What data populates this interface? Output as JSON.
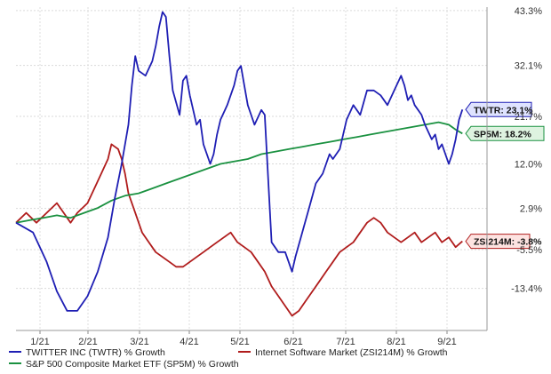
{
  "chart_data": {
    "type": "line",
    "y_ticks": [
      "43.3%",
      "32.1%",
      "21.7%",
      "12.0%",
      "2.9%",
      "-5.5%",
      "-13.4%"
    ],
    "x_ticks": [
      "1/21",
      "2/21",
      "3/21",
      "4/21",
      "5/21",
      "6/21",
      "7/21",
      "8/21",
      "9/21"
    ],
    "ylim": [
      -22,
      44
    ],
    "grid": true,
    "legend_position": "bottom",
    "series": [
      {
        "name": "TWITTER INC (TWTR) % Growth",
        "color": "#1f1fb4",
        "end_label": "TWTR: 23.1%",
        "end_fill": "#dfe3ff",
        "points": [
          [
            0,
            0
          ],
          [
            5,
            -2
          ],
          [
            9,
            -8
          ],
          [
            12,
            -14
          ],
          [
            15,
            -18
          ],
          [
            18,
            -18
          ],
          [
            21,
            -15
          ],
          [
            24,
            -10
          ],
          [
            27,
            -3
          ],
          [
            29,
            5
          ],
          [
            31,
            12
          ],
          [
            33,
            20
          ],
          [
            34,
            28
          ],
          [
            35,
            34
          ],
          [
            36,
            31
          ],
          [
            38,
            30
          ],
          [
            40,
            33
          ],
          [
            41,
            36
          ],
          [
            42,
            40
          ],
          [
            43,
            43
          ],
          [
            44,
            42
          ],
          [
            45,
            34
          ],
          [
            46,
            27
          ],
          [
            48,
            22
          ],
          [
            49,
            29
          ],
          [
            50,
            30
          ],
          [
            51,
            26
          ],
          [
            53,
            20
          ],
          [
            54,
            21
          ],
          [
            55,
            16
          ],
          [
            57,
            12
          ],
          [
            58,
            14
          ],
          [
            59,
            18
          ],
          [
            60,
            21
          ],
          [
            62,
            24
          ],
          [
            64,
            28
          ],
          [
            65,
            31
          ],
          [
            66,
            32
          ],
          [
            67,
            28
          ],
          [
            68,
            24
          ],
          [
            70,
            20
          ],
          [
            72,
            23
          ],
          [
            73,
            22
          ],
          [
            75,
            -4
          ],
          [
            77,
            -6
          ],
          [
            79,
            -6
          ],
          [
            80,
            -8
          ],
          [
            81,
            -10
          ],
          [
            82,
            -7
          ],
          [
            84,
            -2
          ],
          [
            86,
            3
          ],
          [
            88,
            8
          ],
          [
            90,
            10
          ],
          [
            92,
            14
          ],
          [
            93,
            13
          ],
          [
            95,
            15
          ],
          [
            97,
            21
          ],
          [
            99,
            24
          ],
          [
            101,
            22
          ],
          [
            103,
            27
          ],
          [
            105,
            27
          ],
          [
            107,
            26
          ],
          [
            109,
            24
          ],
          [
            111,
            27
          ],
          [
            113,
            30
          ],
          [
            114,
            28
          ],
          [
            115,
            25
          ],
          [
            116,
            26
          ],
          [
            117,
            24
          ],
          [
            118,
            23
          ],
          [
            119,
            22
          ],
          [
            120,
            20
          ],
          [
            122,
            17
          ],
          [
            123,
            18
          ],
          [
            124,
            15
          ],
          [
            125,
            16
          ],
          [
            127,
            12
          ],
          [
            128,
            14
          ],
          [
            129,
            17
          ],
          [
            130,
            21
          ],
          [
            131,
            23.1
          ]
        ]
      },
      {
        "name": "Internet Software Market (ZSI214M) % Growth",
        "color": "#b01c1c",
        "end_label": "ZSI214M: -3.8%",
        "end_fill": "#fde3e1",
        "points": [
          [
            0,
            0
          ],
          [
            3,
            2
          ],
          [
            6,
            0
          ],
          [
            9,
            2
          ],
          [
            12,
            4
          ],
          [
            14,
            2
          ],
          [
            16,
            0
          ],
          [
            18,
            2
          ],
          [
            21,
            4
          ],
          [
            23,
            7
          ],
          [
            25,
            10
          ],
          [
            27,
            13
          ],
          [
            28,
            16
          ],
          [
            30,
            15
          ],
          [
            31,
            13
          ],
          [
            32,
            10
          ],
          [
            33,
            6
          ],
          [
            35,
            2
          ],
          [
            37,
            -2
          ],
          [
            39,
            -4
          ],
          [
            41,
            -6
          ],
          [
            43,
            -7
          ],
          [
            45,
            -8
          ],
          [
            47,
            -9
          ],
          [
            49,
            -9
          ],
          [
            51,
            -8
          ],
          [
            53,
            -7
          ],
          [
            55,
            -6
          ],
          [
            57,
            -5
          ],
          [
            59,
            -4
          ],
          [
            61,
            -3
          ],
          [
            63,
            -2
          ],
          [
            65,
            -4
          ],
          [
            67,
            -5
          ],
          [
            69,
            -6
          ],
          [
            71,
            -8
          ],
          [
            73,
            -10
          ],
          [
            75,
            -13
          ],
          [
            77,
            -15
          ],
          [
            79,
            -17
          ],
          [
            81,
            -19
          ],
          [
            83,
            -18
          ],
          [
            85,
            -16
          ],
          [
            87,
            -14
          ],
          [
            89,
            -12
          ],
          [
            91,
            -10
          ],
          [
            93,
            -8
          ],
          [
            95,
            -6
          ],
          [
            97,
            -5
          ],
          [
            99,
            -4
          ],
          [
            101,
            -2
          ],
          [
            103,
            0
          ],
          [
            105,
            1
          ],
          [
            107,
            0
          ],
          [
            109,
            -2
          ],
          [
            111,
            -3
          ],
          [
            113,
            -4
          ],
          [
            115,
            -3
          ],
          [
            117,
            -2
          ],
          [
            119,
            -4
          ],
          [
            121,
            -3
          ],
          [
            123,
            -2
          ],
          [
            125,
            -4
          ],
          [
            127,
            -3
          ],
          [
            129,
            -5
          ],
          [
            131,
            -3.8
          ]
        ]
      },
      {
        "name": "S&P 500 Composite Market ETF (SP5M) % Growth",
        "color": "#1a9140",
        "end_label": "SP5M: 18.2%",
        "end_fill": "#def3e0",
        "points": [
          [
            0,
            0
          ],
          [
            4,
            0.5
          ],
          [
            8,
            1
          ],
          [
            12,
            1.5
          ],
          [
            16,
            1
          ],
          [
            20,
            2
          ],
          [
            24,
            3
          ],
          [
            28,
            4.5
          ],
          [
            32,
            5.5
          ],
          [
            36,
            6
          ],
          [
            40,
            7
          ],
          [
            44,
            8
          ],
          [
            48,
            9
          ],
          [
            52,
            10
          ],
          [
            56,
            11
          ],
          [
            60,
            12
          ],
          [
            64,
            12.5
          ],
          [
            68,
            13
          ],
          [
            72,
            14
          ],
          [
            76,
            14.5
          ],
          [
            80,
            15
          ],
          [
            84,
            15.5
          ],
          [
            88,
            16
          ],
          [
            92,
            16.5
          ],
          [
            96,
            17
          ],
          [
            100,
            17.5
          ],
          [
            104,
            18
          ],
          [
            108,
            18.5
          ],
          [
            112,
            19
          ],
          [
            116,
            19.5
          ],
          [
            120,
            20
          ],
          [
            124,
            20.5
          ],
          [
            127,
            20
          ],
          [
            129,
            19
          ],
          [
            131,
            18.2
          ]
        ]
      }
    ]
  }
}
